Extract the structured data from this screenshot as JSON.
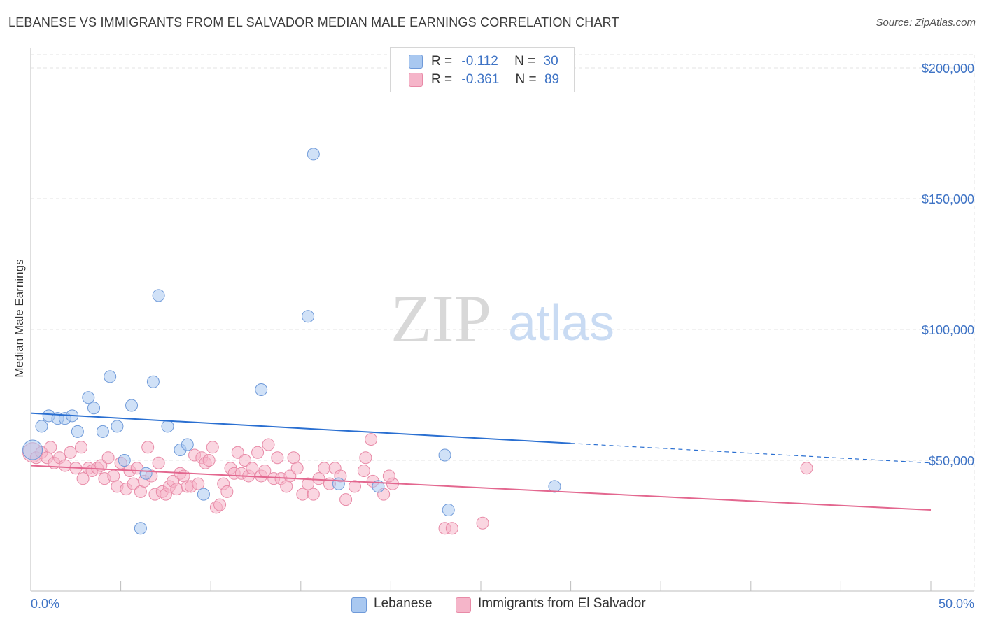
{
  "header": {
    "title": "LEBANESE VS IMMIGRANTS FROM EL SALVADOR MEDIAN MALE EARNINGS CORRELATION CHART",
    "source": "Source: ZipAtlas.com"
  },
  "watermark": {
    "part1": "ZIP",
    "part2": "atlas"
  },
  "legend": {
    "rows": [
      {
        "r_label": "R =",
        "r_value": "-0.112",
        "n_label": "N =",
        "n_value": "30"
      },
      {
        "r_label": "R =",
        "r_value": "-0.361",
        "n_label": "N =",
        "n_value": "89"
      }
    ]
  },
  "colors": {
    "series_blue_fill": "#a9c8f0",
    "series_blue_stroke": "#6f9ad9",
    "series_blue_line": "#2a6fd1",
    "series_pink_fill": "#f5b5c9",
    "series_pink_stroke": "#e88aa7",
    "series_pink_line": "#e3678f",
    "tick_text": "#3e73c5",
    "grid": "#e3e3e3"
  },
  "chart_data": {
    "type": "scatter",
    "title": "LEBANESE VS IMMIGRANTS FROM EL SALVADOR MEDIAN MALE EARNINGS CORRELATION CHART",
    "xlabel": "",
    "ylabel": "Median Male Earnings",
    "xlim": [
      0,
      50
    ],
    "ylim": [
      0,
      210000
    ],
    "x_tick_labels": [
      "0.0%",
      "50.0%"
    ],
    "y_ticks": [
      50000,
      100000,
      150000,
      200000
    ],
    "y_tick_labels": [
      "$50,000",
      "$100,000",
      "$150,000",
      "$200,000"
    ],
    "grid": true,
    "legend_position": "top-center",
    "series": [
      {
        "name": "Lebanese",
        "color": "#a9c8f0",
        "points": [
          [
            0.1,
            54000
          ],
          [
            0.6,
            63000
          ],
          [
            1.0,
            67000
          ],
          [
            1.5,
            66000
          ],
          [
            1.9,
            66000
          ],
          [
            2.3,
            67000
          ],
          [
            2.6,
            61000
          ],
          [
            3.2,
            74000
          ],
          [
            3.5,
            70000
          ],
          [
            4.0,
            61000
          ],
          [
            4.4,
            82000
          ],
          [
            4.8,
            63000
          ],
          [
            5.2,
            50000
          ],
          [
            5.6,
            71000
          ],
          [
            6.1,
            24000
          ],
          [
            6.4,
            45000
          ],
          [
            6.8,
            80000
          ],
          [
            7.1,
            113000
          ],
          [
            7.6,
            63000
          ],
          [
            8.3,
            54000
          ],
          [
            8.7,
            56000
          ],
          [
            9.6,
            37000
          ],
          [
            12.8,
            77000
          ],
          [
            15.4,
            105000
          ],
          [
            15.7,
            167000
          ],
          [
            17.1,
            41000
          ],
          [
            19.3,
            40000
          ],
          [
            23.0,
            52000
          ],
          [
            23.2,
            31000
          ],
          [
            29.1,
            40000
          ]
        ],
        "trend": {
          "x": [
            0,
            30
          ],
          "y": [
            68000,
            56500
          ],
          "dashed_extension_to": [
            50,
            49000
          ]
        }
      },
      {
        "name": "Immigrants from El Salvador",
        "color": "#f5b5c9",
        "points": [
          [
            0.1,
            53000
          ],
          [
            0.3,
            51000
          ],
          [
            0.6,
            53000
          ],
          [
            0.9,
            51000
          ],
          [
            1.1,
            55000
          ],
          [
            1.3,
            49000
          ],
          [
            1.6,
            51000
          ],
          [
            1.9,
            48000
          ],
          [
            2.2,
            53000
          ],
          [
            2.5,
            47000
          ],
          [
            2.8,
            55000
          ],
          [
            2.9,
            43000
          ],
          [
            3.2,
            47000
          ],
          [
            3.4,
            46000
          ],
          [
            3.7,
            47000
          ],
          [
            3.9,
            48000
          ],
          [
            4.1,
            43000
          ],
          [
            4.3,
            51000
          ],
          [
            4.6,
            44000
          ],
          [
            4.8,
            40000
          ],
          [
            5.0,
            49000
          ],
          [
            5.3,
            39000
          ],
          [
            5.5,
            46000
          ],
          [
            5.7,
            41000
          ],
          [
            5.9,
            47000
          ],
          [
            6.1,
            38000
          ],
          [
            6.3,
            42000
          ],
          [
            6.5,
            55000
          ],
          [
            6.7,
            44000
          ],
          [
            6.9,
            37000
          ],
          [
            7.1,
            49000
          ],
          [
            7.3,
            38000
          ],
          [
            7.5,
            37000
          ],
          [
            7.7,
            40000
          ],
          [
            7.9,
            42000
          ],
          [
            8.1,
            39000
          ],
          [
            8.3,
            45000
          ],
          [
            8.5,
            44000
          ],
          [
            8.7,
            40000
          ],
          [
            8.9,
            40000
          ],
          [
            9.1,
            52000
          ],
          [
            9.3,
            41000
          ],
          [
            9.5,
            51000
          ],
          [
            9.7,
            49000
          ],
          [
            9.9,
            50000
          ],
          [
            10.1,
            55000
          ],
          [
            10.3,
            32000
          ],
          [
            10.5,
            33000
          ],
          [
            10.7,
            41000
          ],
          [
            10.9,
            38000
          ],
          [
            11.1,
            47000
          ],
          [
            11.3,
            45000
          ],
          [
            11.5,
            53000
          ],
          [
            11.7,
            45000
          ],
          [
            11.9,
            50000
          ],
          [
            12.1,
            44000
          ],
          [
            12.3,
            47000
          ],
          [
            12.6,
            53000
          ],
          [
            12.8,
            44000
          ],
          [
            13.0,
            46000
          ],
          [
            13.2,
            56000
          ],
          [
            13.5,
            43000
          ],
          [
            13.7,
            51000
          ],
          [
            13.9,
            43000
          ],
          [
            14.2,
            40000
          ],
          [
            14.4,
            44000
          ],
          [
            14.6,
            51000
          ],
          [
            14.8,
            47000
          ],
          [
            15.1,
            37000
          ],
          [
            15.4,
            41000
          ],
          [
            15.7,
            37000
          ],
          [
            16.0,
            43000
          ],
          [
            16.3,
            47000
          ],
          [
            16.6,
            41000
          ],
          [
            16.9,
            47000
          ],
          [
            17.2,
            44000
          ],
          [
            17.5,
            35000
          ],
          [
            18.0,
            40000
          ],
          [
            18.5,
            46000
          ],
          [
            19.0,
            42000
          ],
          [
            18.9,
            58000
          ],
          [
            18.6,
            51000
          ],
          [
            19.6,
            37000
          ],
          [
            20.1,
            41000
          ],
          [
            23.0,
            24000
          ],
          [
            23.4,
            24000
          ],
          [
            25.1,
            26000
          ],
          [
            43.1,
            47000
          ],
          [
            19.9,
            44000
          ]
        ],
        "trend": {
          "x": [
            0,
            50
          ],
          "y": [
            48000,
            31000
          ]
        }
      }
    ]
  }
}
